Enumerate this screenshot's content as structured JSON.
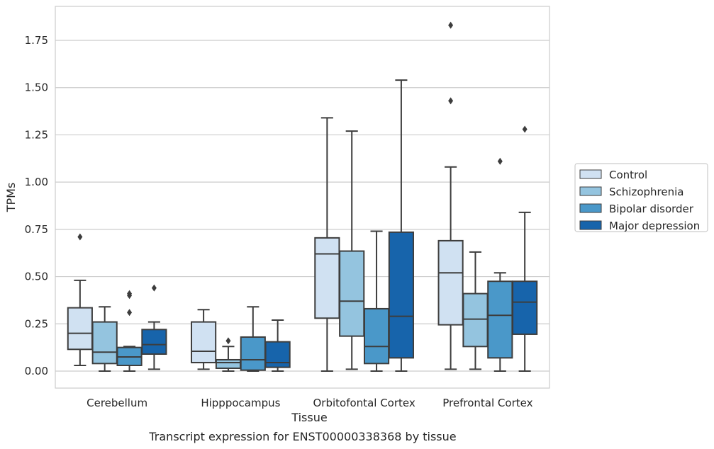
{
  "chart_data": {
    "type": "box",
    "xlabel": "Tissue",
    "ylabel": "TPMs",
    "caption": "Transcript expression for ENST00000338368 by tissue",
    "ylim": [
      -0.09,
      1.93
    ],
    "y_ticks": [
      "0.00",
      "0.25",
      "0.50",
      "0.75",
      "1.00",
      "1.25",
      "1.50",
      "1.75"
    ],
    "grid": "horizontal",
    "legend_position": "right",
    "categories": [
      "Cerebellum",
      "Hipppocampus",
      "Orbitofontal Cortex",
      "Prefrontal Cortex"
    ],
    "series": [
      {
        "name": "Control",
        "color": "#d0e1f2",
        "boxes": [
          {
            "whislo": 0.03,
            "q1": 0.115,
            "med": 0.2,
            "q3": 0.335,
            "whishi": 0.48,
            "fliers": [
              0.71
            ]
          },
          {
            "whislo": 0.01,
            "q1": 0.045,
            "med": 0.105,
            "q3": 0.26,
            "whishi": 0.325,
            "fliers": []
          },
          {
            "whislo": 0.0,
            "q1": 0.28,
            "med": 0.62,
            "q3": 0.705,
            "whishi": 1.34,
            "fliers": []
          },
          {
            "whislo": 0.01,
            "q1": 0.245,
            "med": 0.52,
            "q3": 0.69,
            "whishi": 1.08,
            "fliers": [
              1.43,
              1.83
            ]
          }
        ]
      },
      {
        "name": "Schizophrenia",
        "color": "#94c4df",
        "boxes": [
          {
            "whislo": 0.0,
            "q1": 0.04,
            "med": 0.1,
            "q3": 0.26,
            "whishi": 0.34,
            "fliers": []
          },
          {
            "whislo": 0.0,
            "q1": 0.015,
            "med": 0.045,
            "q3": 0.06,
            "whishi": 0.13,
            "fliers": [
              0.16
            ]
          },
          {
            "whislo": 0.01,
            "q1": 0.185,
            "med": 0.37,
            "q3": 0.635,
            "whishi": 1.27,
            "fliers": []
          },
          {
            "whislo": 0.01,
            "q1": 0.13,
            "med": 0.275,
            "q3": 0.41,
            "whishi": 0.63,
            "fliers": []
          }
        ]
      },
      {
        "name": "Bipolar disorder",
        "color": "#4a98c9",
        "boxes": [
          {
            "whislo": 0.0,
            "q1": 0.03,
            "med": 0.075,
            "q3": 0.125,
            "whishi": 0.13,
            "fliers": [
              0.31,
              0.4,
              0.41
            ]
          },
          {
            "whislo": 0.0,
            "q1": 0.005,
            "med": 0.06,
            "q3": 0.18,
            "whishi": 0.34,
            "fliers": []
          },
          {
            "whislo": 0.0,
            "q1": 0.04,
            "med": 0.13,
            "q3": 0.33,
            "whishi": 0.74,
            "fliers": []
          },
          {
            "whislo": 0.0,
            "q1": 0.07,
            "med": 0.295,
            "q3": 0.475,
            "whishi": 0.52,
            "fliers": [
              1.11
            ]
          }
        ]
      },
      {
        "name": "Major depression",
        "color": "#1764ab",
        "boxes": [
          {
            "whislo": 0.01,
            "q1": 0.09,
            "med": 0.14,
            "q3": 0.22,
            "whishi": 0.26,
            "fliers": [
              0.44
            ]
          },
          {
            "whislo": 0.0,
            "q1": 0.02,
            "med": 0.045,
            "q3": 0.155,
            "whishi": 0.27,
            "fliers": []
          },
          {
            "whislo": 0.0,
            "q1": 0.07,
            "med": 0.29,
            "q3": 0.735,
            "whishi": 1.54,
            "fliers": []
          },
          {
            "whislo": 0.0,
            "q1": 0.195,
            "med": 0.365,
            "q3": 0.475,
            "whishi": 0.84,
            "fliers": [
              1.28
            ]
          }
        ]
      }
    ]
  }
}
